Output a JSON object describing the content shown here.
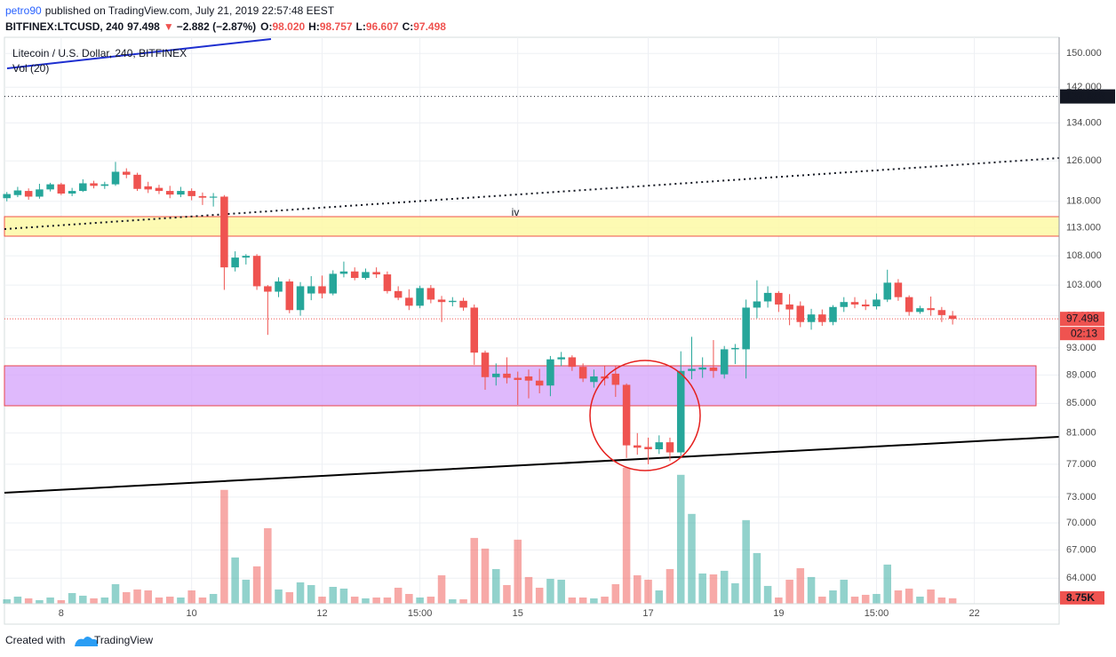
{
  "header": {
    "author": "petro90",
    "published": "published on TradingView.com, July 21, 2019 22:57:48 EEST",
    "symbol": "BITFINEX:LTCUSD, 240",
    "last": "97.498",
    "arrow": "▼",
    "change": "−2.882 (−2.87%)",
    "ohlc": [
      {
        "label": "O:",
        "value": "98.020"
      },
      {
        "label": "H:",
        "value": "98.757"
      },
      {
        "label": "L:",
        "value": "96.607"
      },
      {
        "label": "C:",
        "value": "97.498"
      }
    ],
    "footer": "Created with",
    "brand": "TradingView"
  },
  "chart_data": {
    "type": "candlestick",
    "title": "Litecoin / U.S. Dollar, 240, BITFINEX",
    "volume_title": "Vol (20)",
    "log_scale": true,
    "grid": true,
    "up_color": "#26a69a",
    "down_color": "#ef5350",
    "xlim": [
      7.13,
      23.3
    ],
    "ylim": [
      61.4,
      154
    ],
    "volume_lim": [
      0,
      910
    ],
    "xticks": [
      8,
      10,
      12,
      {
        "value": 13.5,
        "label": "15:00"
      },
      15,
      17,
      19,
      {
        "value": 20.5,
        "label": "15:00"
      },
      22
    ],
    "yticks": [
      {
        "value": 150,
        "label": "150.000"
      },
      {
        "value": 142,
        "label": "142.000"
      },
      {
        "value": 134,
        "label": "134.000"
      },
      {
        "value": 126,
        "label": "126.000"
      },
      {
        "value": 118,
        "label": "118.000"
      },
      {
        "value": 113,
        "label": "113.000"
      },
      {
        "value": 108,
        "label": "108.000"
      },
      {
        "value": 103,
        "label": "103.000"
      },
      {
        "value": 98,
        "label": "98.000"
      },
      {
        "value": 93,
        "label": "93.000"
      },
      {
        "value": 89,
        "label": "89.000"
      },
      {
        "value": 85,
        "label": "85.000"
      },
      {
        "value": 81,
        "label": "81.000"
      },
      {
        "value": 77,
        "label": "77.000"
      },
      {
        "value": 73,
        "label": "73.000"
      },
      {
        "value": 70,
        "label": "70.000"
      },
      {
        "value": 67,
        "label": "67.000"
      },
      {
        "value": 64,
        "label": "64.000"
      }
    ],
    "hline": 139.899,
    "countdown": "02:13",
    "volume_label": "8.75K",
    "annotations": [
      "iv"
    ],
    "x": [
      7.167,
      7.333,
      7.5,
      7.667,
      7.833,
      8,
      8.167,
      8.333,
      8.5,
      8.667,
      8.833,
      9,
      9.167,
      9.333,
      9.5,
      9.667,
      9.833,
      10,
      10.167,
      10.333,
      10.5,
      10.667,
      10.833,
      11,
      11.167,
      11.333,
      11.5,
      11.667,
      11.833,
      12,
      12.167,
      12.333,
      12.5,
      12.667,
      12.833,
      13,
      13.167,
      13.333,
      13.5,
      13.667,
      13.833,
      14,
      14.167,
      14.333,
      14.5,
      14.667,
      14.833,
      15,
      15.167,
      15.333,
      15.5,
      15.667,
      15.833,
      16,
      16.167,
      16.333,
      16.5,
      16.667,
      16.833,
      17,
      17.167,
      17.333,
      17.5,
      17.667,
      17.833,
      18,
      18.167,
      18.333,
      18.5,
      18.667,
      18.833,
      19,
      19.167,
      19.333,
      19.5,
      19.667,
      19.833,
      20,
      20.167,
      20.333,
      20.5,
      20.667,
      20.833,
      21,
      21.167,
      21.333,
      21.5,
      21.667
    ],
    "open": [
      118.6,
      119.2,
      120.0,
      118.9,
      120.3,
      121.3,
      119.5,
      120.0,
      121.5,
      121.0,
      121.3,
      123.8,
      123.2,
      120.9,
      120.6,
      120.0,
      119.3,
      120.0,
      119.0,
      118.7,
      118.9,
      106.0,
      107.7,
      108.0,
      102.8,
      101.9,
      103.6,
      98.9,
      101.6,
      102.8,
      101.6,
      104.9,
      105.3,
      104.2,
      105.2,
      104.8,
      102.0,
      100.9,
      99.6,
      102.5,
      100.6,
      100.2,
      100.4,
      99.3,
      92.3,
      88.7,
      89.2,
      88.6,
      88.8,
      88.2,
      87.5,
      91.3,
      91.6,
      90.2,
      88.0,
      88.8,
      89.2,
      87.6,
      79.4,
      79.2,
      78.9,
      79.8,
      78.5,
      89.6,
      89.8,
      90.1,
      89.1,
      92.8,
      92.8,
      99.3,
      100.3,
      101.7,
      99.8,
      99.6,
      97.0,
      98.2,
      97.0,
      99.4,
      100.2,
      99.8,
      99.5,
      100.6,
      103.4,
      101.0,
      98.6,
      99.2,
      98.9,
      98.02
    ],
    "high": [
      119.8,
      120.8,
      120.5,
      121.4,
      121.6,
      121.6,
      120.6,
      122.3,
      122.0,
      121.8,
      125.8,
      124.5,
      123.6,
      121.8,
      121.2,
      121.0,
      120.8,
      120.5,
      119.7,
      119.6,
      119.2,
      108.8,
      108.3,
      108.3,
      103.0,
      104.3,
      104.0,
      103.5,
      104.5,
      104.6,
      105.5,
      107.0,
      106.0,
      105.8,
      106.0,
      105.3,
      102.8,
      102.3,
      102.9,
      103.0,
      101.2,
      101.0,
      100.9,
      99.8,
      92.6,
      90.7,
      91.6,
      89.5,
      89.8,
      89.9,
      91.8,
      92.4,
      91.9,
      90.7,
      89.8,
      90.3,
      90.4,
      87.8,
      81.0,
      80.4,
      80.7,
      80.4,
      92.5,
      94.7,
      91.6,
      94.2,
      93.3,
      93.6,
      100.6,
      103.8,
      102.8,
      102.0,
      101.5,
      100.3,
      99.1,
      99.0,
      99.7,
      101.0,
      101.0,
      100.6,
      101.6,
      105.6,
      104.0,
      101.3,
      99.6,
      101.1,
      99.4,
      98.757
    ],
    "low": [
      118.0,
      118.8,
      118.3,
      118.5,
      119.9,
      119.2,
      119.0,
      119.8,
      120.5,
      120.4,
      121.0,
      122.5,
      120.0,
      119.6,
      119.4,
      118.6,
      118.8,
      118.2,
      117.3,
      117.0,
      102.2,
      105.3,
      106.5,
      102.2,
      95.0,
      101.0,
      98.4,
      98.0,
      100.5,
      100.8,
      101.3,
      104.3,
      103.8,
      103.9,
      104.2,
      101.6,
      100.5,
      98.9,
      99.2,
      100.0,
      97.0,
      99.5,
      98.8,
      90.5,
      86.9,
      87.5,
      87.8,
      84.8,
      85.7,
      86.4,
      86.0,
      90.3,
      89.6,
      88.0,
      87.2,
      87.5,
      85.9,
      77.8,
      78.2,
      77.0,
      78.3,
      77.4,
      78.1,
      88.4,
      88.6,
      88.6,
      88.5,
      90.6,
      88.5,
      97.6,
      99.3,
      98.6,
      96.5,
      96.2,
      95.8,
      96.4,
      96.5,
      98.6,
      99.2,
      98.9,
      99.0,
      100.2,
      100.4,
      98.0,
      98.3,
      98.0,
      97.0,
      96.607
    ],
    "close": [
      119.4,
      120.1,
      118.9,
      120.3,
      121.3,
      119.5,
      120.0,
      121.5,
      121.0,
      121.3,
      123.8,
      123.2,
      120.4,
      120.3,
      120.0,
      119.3,
      120.0,
      119.0,
      118.7,
      118.9,
      106.0,
      107.7,
      108.0,
      102.8,
      101.9,
      103.6,
      98.9,
      102.8,
      102.8,
      101.6,
      104.9,
      105.3,
      104.2,
      105.2,
      104.8,
      102.0,
      100.9,
      99.6,
      102.5,
      100.6,
      100.2,
      100.4,
      99.3,
      92.3,
      88.7,
      89.2,
      88.6,
      88.3,
      88.2,
      87.5,
      91.3,
      91.6,
      90.2,
      88.5,
      88.8,
      88.5,
      87.6,
      79.4,
      79.1,
      78.9,
      79.8,
      78.5,
      89.6,
      89.9,
      90.1,
      89.6,
      92.8,
      93.0,
      99.3,
      100.3,
      101.7,
      99.8,
      99.0,
      97.0,
      98.2,
      97.0,
      99.4,
      100.2,
      99.8,
      99.5,
      100.6,
      103.4,
      101.0,
      98.6,
      99.2,
      98.9,
      98.1,
      97.498
    ],
    "volume": [
      7.1,
      11.4,
      8.6,
      5.7,
      10,
      5.7,
      17.1,
      12.9,
      8.6,
      10,
      31.4,
      18.6,
      22.9,
      21.4,
      10,
      11.4,
      10,
      21.4,
      10,
      15.7,
      182.9,
      74.3,
      38.6,
      60,
      121.4,
      22.9,
      18.6,
      34.3,
      30,
      11.4,
      27.1,
      24.3,
      11.4,
      8.6,
      10,
      10,
      25.7,
      15.7,
      10,
      11.4,
      45.7,
      7.1,
      7.1,
      105.7,
      88.6,
      55.7,
      30,
      102.9,
      42.9,
      25.7,
      40,
      38.6,
      10,
      10,
      8.6,
      11.4,
      31.4,
      218.6,
      45.7,
      38.6,
      21.4,
      55.7,
      207.1,
      144.3,
      48.6,
      47.1,
      52.9,
      32.9,
      134.3,
      81.4,
      28.6,
      10,
      38.6,
      57.1,
      42.9,
      11.4,
      21.4,
      38.6,
      11.4,
      14.3,
      15.7,
      62.9,
      21.4,
      24.3,
      11.4,
      22.9,
      10,
      8.75
    ]
  }
}
